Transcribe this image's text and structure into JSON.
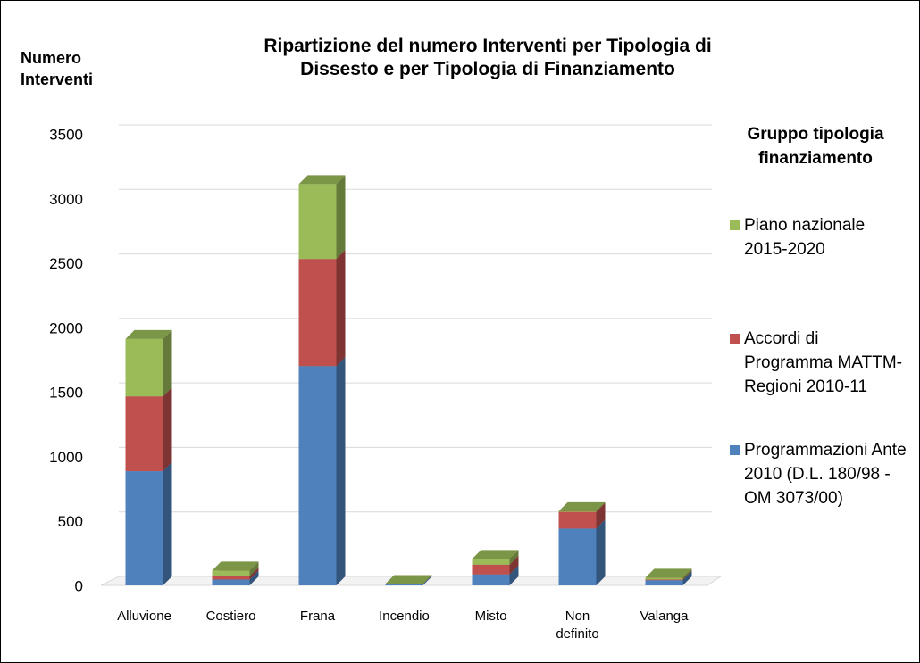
{
  "chart_data": {
    "type": "bar3d_stacked",
    "title": "Ripartizione  del numero Interventi per Tipologia di Dissesto e per Tipologia di Finanziamento",
    "y_label": "Numero Interventi",
    "legend_title": "Gruppo tipologia finanziamento",
    "categories": [
      "Alluvione",
      "Costiero",
      "Frana",
      "Incendio",
      "Misto",
      "Non definito",
      "Valanga"
    ],
    "series": [
      {
        "name": "Programmazioni Ante 2010 (D.L. 180/98 -OM 3073/00)",
        "color": "#4f81bd",
        "values": [
          885,
          45,
          1700,
          10,
          85,
          440,
          40
        ]
      },
      {
        "name": "Accordi di Programma MATTM-Regioni 2010-11",
        "color": "#c0504d",
        "values": [
          580,
          25,
          830,
          0,
          75,
          130,
          5
        ]
      },
      {
        "name": "Piano nazionale 2015-2020",
        "color": "#9bbb59",
        "values": [
          445,
          45,
          580,
          0,
          45,
          5,
          15
        ]
      }
    ],
    "ylim": [
      0,
      3500
    ],
    "yticks": [
      0,
      500,
      1000,
      1500,
      2000,
      2500,
      3000,
      3500
    ],
    "grid": true
  }
}
